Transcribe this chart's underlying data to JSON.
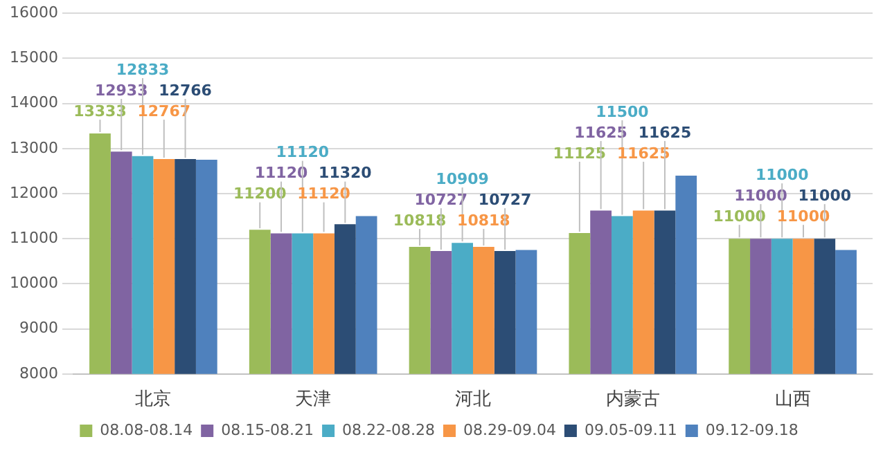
{
  "chart_data": {
    "type": "bar",
    "categories": [
      "北京",
      "天津",
      "河北",
      "内蒙古",
      "山西"
    ],
    "series": [
      {
        "name": "08.08-08.14",
        "color": "#9bbb59",
        "values": [
          13333,
          11200,
          10818,
          11125,
          11000
        ],
        "value_labels": [
          "13333",
          "11200",
          "10818",
          "11125",
          "11000"
        ]
      },
      {
        "name": "08.15-08.21",
        "color": "#8064a2",
        "values": [
          12933,
          11120,
          10727,
          11625,
          11000
        ],
        "value_labels": [
          "12933",
          "11120",
          "10727",
          "11625",
          "11000"
        ]
      },
      {
        "name": "08.22-08.28",
        "color": "#4bacc6",
        "values": [
          12833,
          11120,
          10909,
          11500,
          11000
        ],
        "value_labels": [
          "12833",
          "11120",
          "10909",
          "11500",
          "11000"
        ]
      },
      {
        "name": "08.29-09.04",
        "color": "#f79646",
        "values": [
          12767,
          11120,
          10818,
          11625,
          11000
        ],
        "value_labels": [
          "12767",
          "11120",
          "10818",
          "11625",
          "11000"
        ]
      },
      {
        "name": "09.05-09.11",
        "color": "#2c4d75",
        "values": [
          12766,
          11320,
          10727,
          11625,
          11000
        ],
        "value_labels": [
          "12766",
          "11320",
          "10727",
          "11625",
          "11000"
        ]
      },
      {
        "name": "09.12-09.18",
        "color": "#4f81bd",
        "values": [
          12750,
          11500,
          10750,
          12400,
          10750
        ]
      }
    ],
    "ylim": [
      8000,
      16000
    ],
    "yticks": [
      8000,
      9000,
      10000,
      11000,
      12000,
      13000,
      14000,
      15000,
      16000
    ],
    "grid": "y",
    "legend": "bottom"
  }
}
